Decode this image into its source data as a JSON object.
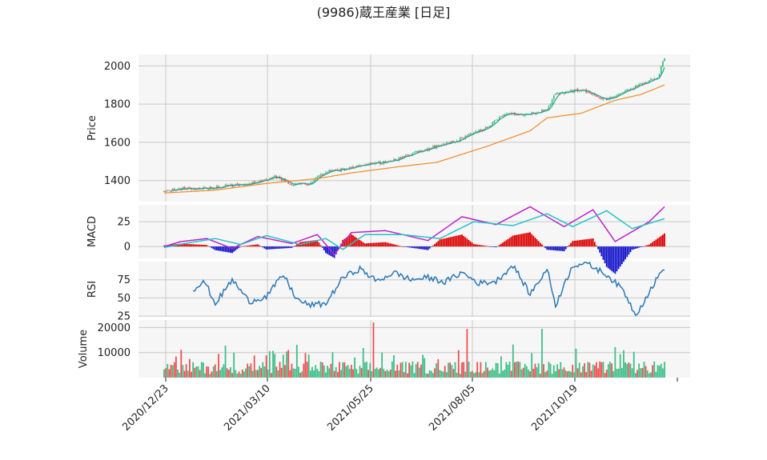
{
  "chart_data": {
    "type": "candlestick",
    "title": "(9986)蔵王産業 [日足]",
    "colors": {
      "up": "#3dbf88",
      "down": "#ee5050",
      "ma_short": "#2a9d8f",
      "ma_long": "#f08a24",
      "macd": "#bb22cc",
      "signal": "#22c3c8",
      "hist_pos": "#dd0000",
      "hist_neg": "#1111cc",
      "rsi": "#2a78b5",
      "grid": "#c8c8c8",
      "panel": "#f6f6f6"
    },
    "x_ticks": [
      "2020/12/23",
      "2021/03/10",
      "2021/05/25",
      "2021/08/05",
      "2021/10/19"
    ],
    "panels": {
      "price": {
        "ylabel": "Price",
        "yticks": [
          1400,
          1600,
          1800,
          2000
        ],
        "ylim": [
          1290,
          2060
        ],
        "close_anchors": [
          [
            0,
            1345
          ],
          [
            10,
            1358
          ],
          [
            25,
            1360
          ],
          [
            40,
            1375
          ],
          [
            55,
            1390
          ],
          [
            65,
            1420
          ],
          [
            75,
            1382
          ],
          [
            85,
            1385
          ],
          [
            95,
            1445
          ],
          [
            115,
            1475
          ],
          [
            135,
            1505
          ],
          [
            150,
            1555
          ],
          [
            165,
            1590
          ],
          [
            175,
            1620
          ],
          [
            190,
            1680
          ],
          [
            200,
            1750
          ],
          [
            215,
            1748
          ],
          [
            225,
            1772
          ],
          [
            230,
            1855
          ],
          [
            245,
            1875
          ],
          [
            260,
            1820
          ],
          [
            275,
            1885
          ],
          [
            290,
            1940
          ],
          [
            294,
            2045
          ]
        ],
        "ma_long_anchors": [
          [
            0,
            1335
          ],
          [
            30,
            1350
          ],
          [
            60,
            1385
          ],
          [
            90,
            1410
          ],
          [
            110,
            1440
          ],
          [
            140,
            1475
          ],
          [
            160,
            1495
          ],
          [
            190,
            1580
          ],
          [
            215,
            1660
          ],
          [
            225,
            1728
          ],
          [
            245,
            1752
          ],
          [
            265,
            1820
          ],
          [
            280,
            1850
          ],
          [
            294,
            1900
          ]
        ]
      },
      "macd": {
        "ylabel": "MACD",
        "yticks": [
          0,
          25
        ],
        "ylim": [
          -12,
          42
        ],
        "macd_anchors": [
          [
            0,
            0
          ],
          [
            10,
            5
          ],
          [
            25,
            8
          ],
          [
            40,
            -2
          ],
          [
            55,
            10
          ],
          [
            75,
            3
          ],
          [
            90,
            12
          ],
          [
            100,
            -8
          ],
          [
            110,
            14
          ],
          [
            130,
            16
          ],
          [
            155,
            6
          ],
          [
            175,
            30
          ],
          [
            195,
            22
          ],
          [
            215,
            40
          ],
          [
            235,
            20
          ],
          [
            252,
            37
          ],
          [
            265,
            5
          ],
          [
            285,
            25
          ],
          [
            294,
            40
          ]
        ],
        "signal_anchors": [
          [
            0,
            -1
          ],
          [
            12,
            3
          ],
          [
            30,
            8
          ],
          [
            45,
            2
          ],
          [
            60,
            11
          ],
          [
            80,
            2
          ],
          [
            95,
            8
          ],
          [
            105,
            -3
          ],
          [
            118,
            12
          ],
          [
            140,
            12
          ],
          [
            162,
            8
          ],
          [
            182,
            25
          ],
          [
            205,
            21
          ],
          [
            225,
            33
          ],
          [
            240,
            20
          ],
          [
            260,
            36
          ],
          [
            275,
            18
          ],
          [
            294,
            28
          ]
        ]
      },
      "rsi": {
        "ylabel": "RSI",
        "yticks": [
          25,
          50,
          75
        ],
        "ylim": [
          24,
          100
        ],
        "rsi_anchors": [
          [
            17,
            62
          ],
          [
            24,
            72
          ],
          [
            30,
            42
          ],
          [
            40,
            75
          ],
          [
            50,
            45
          ],
          [
            60,
            52
          ],
          [
            70,
            82
          ],
          [
            78,
            48
          ],
          [
            85,
            40
          ],
          [
            95,
            42
          ],
          [
            105,
            78
          ],
          [
            115,
            90
          ],
          [
            125,
            73
          ],
          [
            135,
            85
          ],
          [
            145,
            75
          ],
          [
            155,
            78
          ],
          [
            165,
            72
          ],
          [
            175,
            85
          ],
          [
            185,
            70
          ],
          [
            195,
            73
          ],
          [
            205,
            95
          ],
          [
            215,
            55
          ],
          [
            225,
            90
          ],
          [
            230,
            40
          ],
          [
            240,
            95
          ],
          [
            248,
            98
          ],
          [
            260,
            82
          ],
          [
            270,
            60
          ],
          [
            277,
            26
          ],
          [
            290,
            78
          ],
          [
            294,
            92
          ]
        ]
      },
      "volume": {
        "ylabel": "Volume",
        "yticks": [
          10000,
          20000
        ],
        "ylim": [
          0,
          23000
        ]
      }
    },
    "n_bars": 295,
    "seed": 9986
  }
}
